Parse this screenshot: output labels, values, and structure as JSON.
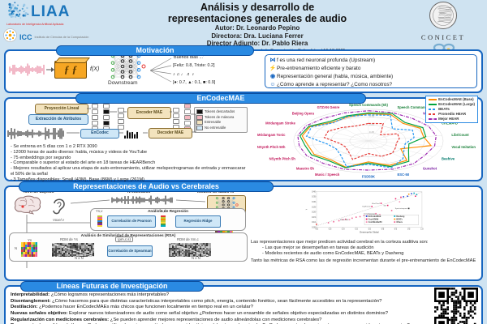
{
  "header": {
    "title_line1": "Análisis y desarrollo de",
    "title_line2": "representaciones generales de audio",
    "author": "Autor: Dr. Leonardo Pepino",
    "director": "Directora: Dra. Luciana Ferrer",
    "codirector": "Director Adjunto: Dr. Pablo Riera",
    "thesis_note": "Tesis para optar por el título de Dr. en Ciencias de la Computación. Defendida el 16-12-2025",
    "liaa_name": "LIAA",
    "liaa_tagline": "Laboratorio de Inteligencia Artificial Aplicada",
    "icc_name": "ICC",
    "icc_tagline": "Instituto de Ciencias de la Computación",
    "conicet": "CONICET"
  },
  "motivacion": {
    "title": "Motivación",
    "fx_label": "f(X)",
    "downstream_label": "Downstream",
    "outputs": [
      "'Buenos días ...'",
      "[Feliz: 0.8, Triste: 0.2]",
      "♪ ♫ ♩ ♬ ♪",
      "[●: 0.7, ▲: 0.1, ■: 0.9]"
    ],
    "bullets": [
      {
        "icon": "⋈",
        "icon_name": "upstream-network-icon",
        "text": "f es una red neuronal profunda (Upstream)"
      },
      {
        "icon": "⚡",
        "icon_name": "efficiency-icon",
        "text": "Pre-entrenamiento eficiente y barato"
      },
      {
        "icon": "◉",
        "icon_name": "general-representation-icon",
        "text": "Representación general (habla, música, ambiente)"
      },
      {
        "icon": "☺",
        "icon_name": "brain-learning-icon",
        "text": "¿Cómo aprende a representar? ¿Como nosotros?"
      }
    ]
  },
  "encodecmae": {
    "title": "EnCodecMAE",
    "diagram": {
      "proj": "Proyección Lineal",
      "extract": "Extracción de Atributos",
      "encoder": "Encoder MAE",
      "encodec": "EnCodec",
      "decoder": "Decoder MAE",
      "legend": [
        {
          "color": "#111111",
          "label": "Tokens descartados"
        },
        {
          "color": "#f4b8c0",
          "label": "Tokens de máscara"
        },
        {
          "color": "#f3e3bd",
          "label": "Entrenable"
        },
        {
          "color": "#cfe7f7",
          "label": "No entrenable"
        }
      ]
    },
    "bullets": [
      "Se entrena en 5 días con 1 o 2 RTX 3090",
      "12000 horas de audio diverso: habla, música y videos de YouTube",
      "75 embeddings por segundo",
      "Comparable o superior al estado del arte en 18 tareas de HEARBench",
      "Mejores resultados al aplicar una etapa de auto-entrenamiento, utilizar melspectrogramas de entrada y enmascarar el 50% de la señal",
      "3 Tamaños disponibles: Small (43M), Base (86M) y Large (261M)"
    ]
  },
  "cerebrales": {
    "title": "Representaciones de Audio vs Cerebrales",
    "fmri_label": "fMRI de Sujetos",
    "stimuli_label": "N estímulos",
    "model_label": "Modelo de audio m",
    "voxel_label": "Voxel v",
    "regression_title": "Análisis de Regresión",
    "y_col_label": "Ys,v",
    "yhat_col_label": "Ŷs,v",
    "pearson": "Correlación de Pearson",
    "ridge": "Regresión Ridge",
    "x_matrix_label": "Xm,c",
    "rsa_title": "Análisis de Similaridad de Representaciones (RSA)",
    "ys_label": "Ys",
    "n_label": "N",
    "rdm_y": "RDM de Ys",
    "rdm_x": "RDM de Xm,c",
    "rho_chip": "(ρm,c,s)",
    "spearman": "Correlación de Spearman",
    "nxn": "N x N",
    "findings_intro": "Las representaciones que mejor predicen actividad cerebral en la corteza auditiva son:",
    "findings": [
      "Las que mejor se desempeñan en tareas de audición",
      "Modelos recientes de audio como EnCodecMAE, BEATs y Dasheng"
    ],
    "findings_note": "Tanto las métricas de RSA como las de regresión incrementan durante el pre-entrenamiento de EnCodecMAE"
  },
  "futuras": {
    "title": "Líneas Futuras de Investigación",
    "items": [
      {
        "label": "Interpretabilidad:",
        "text": " ¿Cómo logramos representaciones más interpretables?"
      },
      {
        "label": "Disentanglement:",
        "text": " ¿Cómo hacemos para que distintas características interpretables como pitch, energía, contenido fonético, sean fácilmente accesibles en la representación?"
      },
      {
        "label": "Destilación:",
        "text": " ¿Podemos hacer EnCodecMAEs más chicos que funcionen localmente en tiempo real en un celular?"
      },
      {
        "label": "Nuevas señales objetivo:",
        "text": " Explorar nuevos tokenizadores de audio como señal objetivo ¿Podemos hacer un ensamble de señales objetivo especializadas en distintos dominios?"
      },
      {
        "label": "Regularización con mediciones cerebrales:",
        "text": " ¿Se pueden aprender mejores representaciones de audio alineándolas con mediciones cerebrales?"
      },
      {
        "label": "Representaciones bioacústicas:",
        "text": " ¿Podemos utilizar los mismos métodos con sonidos típicos del entorno de animales? ¿Podemos entender mejor cómo procesan sonidos otras especies?"
      }
    ]
  },
  "chart_data": [
    {
      "type": "radar",
      "title": "",
      "rlim": [
        0,
        1
      ],
      "rticks": [
        0.25,
        0.5,
        0.75
      ],
      "legend_position": "top-right",
      "categories": [
        "Speech Commands (5h)",
        "Speech Commands (Full)",
        "VoxLingua 107",
        "CREMA-D",
        "LibriCount",
        "Vocal Imitation",
        "Beehive",
        "Gunshot",
        "ESC-50",
        "FSD50K",
        "Music / Speech",
        "Maestro 5h",
        "NSynth Pitch 5h",
        "NSynth Pitch 50h",
        "Mridangam Tonic",
        "Mridangam Stroke",
        "Beijing Opera",
        "GTZAN Genre"
      ],
      "label_colors": [
        "#188038",
        "#188038",
        "#7b1fa2",
        "#188038",
        "#188038",
        "#188038",
        "#00796b",
        "#7b1fa2",
        "#1565c0",
        "#1565c0",
        "#c2185b",
        "#c2185b",
        "#c2185b",
        "#c2185b",
        "#c2185b",
        "#c2185b",
        "#c2185b",
        "#c2185b"
      ],
      "series": [
        {
          "name": "EnCodecMAE (Base)",
          "color": "#ff8c00",
          "dash": "solid",
          "values": [
            0.86,
            0.88,
            0.72,
            0.8,
            0.75,
            0.85,
            0.5,
            0.8,
            0.82,
            0.66,
            0.88,
            0.78,
            0.84,
            0.82,
            0.9,
            0.9,
            0.76,
            0.8
          ]
        },
        {
          "name": "EnCodecMAE (Large)",
          "color": "#00a33e",
          "dash": "solid",
          "values": [
            0.88,
            0.92,
            0.76,
            0.84,
            0.78,
            0.55,
            0.62,
            0.84,
            0.86,
            0.7,
            0.9,
            0.82,
            0.88,
            0.86,
            0.93,
            0.92,
            0.8,
            0.84
          ]
        },
        {
          "name": "BEATs",
          "color": "#2196f3",
          "dash": "dashed",
          "values": [
            0.82,
            0.86,
            0.5,
            0.68,
            0.62,
            0.5,
            0.55,
            0.72,
            0.9,
            0.74,
            0.86,
            0.58,
            0.5,
            0.56,
            0.84,
            0.88,
            0.74,
            0.82
          ]
        },
        {
          "name": "Promedio HEAR",
          "color": "#e53935",
          "dash": "dashed",
          "values": [
            0.55,
            0.58,
            0.25,
            0.45,
            0.42,
            0.38,
            0.42,
            0.5,
            0.52,
            0.4,
            0.62,
            0.42,
            0.36,
            0.4,
            0.6,
            0.62,
            0.55,
            0.5
          ]
        },
        {
          "name": "Mejor HEAR",
          "color": "#9c27b0",
          "dash": "dashdot",
          "values": [
            0.95,
            0.95,
            0.92,
            0.93,
            0.92,
            0.9,
            0.88,
            0.94,
            0.95,
            0.92,
            0.95,
            0.93,
            0.95,
            0.94,
            0.96,
            0.96,
            0.93,
            0.94
          ]
        }
      ]
    },
    {
      "type": "scatter",
      "title": "",
      "xlabel": "Desempeño Global",
      "ylabel": "r̄",
      "xlim": [
        -3.0,
        1.0
      ],
      "ylim": [
        0.05,
        0.4
      ],
      "xticks": [
        -3.0,
        -2.5,
        -2.0,
        -1.5,
        -1.0,
        -0.5,
        0.0,
        0.5,
        1.0
      ],
      "yticks": [
        0.05,
        0.1,
        0.15,
        0.2,
        0.25,
        0.3,
        0.35,
        0.4
      ],
      "trend": {
        "x1": -3.0,
        "y1": 0.065,
        "x2": 1.0,
        "y2": 0.395
      },
      "legend": [
        {
          "name": "EnCodecMAE",
          "color": "#1f3fd4"
        },
        {
          "name": "CochCNN9",
          "color": "#e91e63"
        },
        {
          "name": "CochResNet50",
          "color": "#f48fb1"
        },
        {
          "name": "Dasheng",
          "color": "#00acc1"
        },
        {
          "name": "BEATs",
          "color": "#ff9800"
        },
        {
          "name": "Others",
          "color": "#f06292"
        }
      ],
      "points": [
        {
          "x": -3.0,
          "y": 0.08,
          "c": "#e53935"
        },
        {
          "x": -2.55,
          "y": 0.095,
          "c": "#f06292"
        },
        {
          "x": -2.35,
          "y": 0.105,
          "c": "#f06292"
        },
        {
          "x": -2.15,
          "y": 0.115,
          "c": "#f06292"
        },
        {
          "x": -2.0,
          "y": 0.125,
          "c": "#f06292"
        },
        {
          "x": -1.9,
          "y": 0.13,
          "c": "#f06292"
        },
        {
          "x": -1.75,
          "y": 0.125,
          "c": "#f48fb1",
          "label": "MetricGAN"
        },
        {
          "x": -1.65,
          "y": 0.14,
          "c": "#f06292"
        },
        {
          "x": -1.5,
          "y": 0.15,
          "c": "#f06292"
        },
        {
          "x": -1.35,
          "y": 0.155,
          "c": "#f06292"
        },
        {
          "x": -1.2,
          "y": 0.165,
          "c": "#f06292"
        },
        {
          "x": -1.05,
          "y": 0.17,
          "c": "#f06292"
        },
        {
          "x": -0.9,
          "y": 0.255,
          "c": "#e91e63",
          "label": "SepFormer"
        },
        {
          "x": -0.75,
          "y": 0.185,
          "c": "#f06292",
          "label": "DeepSpeech2"
        },
        {
          "x": -0.6,
          "y": 0.175,
          "c": "#f06292",
          "label": "ZeroSpeech"
        },
        {
          "x": -0.55,
          "y": 0.285,
          "c": "#e91e63",
          "label": "Wav2Vec2"
        },
        {
          "x": -0.3,
          "y": 0.265,
          "c": "#e91e63",
          "label": "S2T"
        },
        {
          "x": -0.15,
          "y": 0.215,
          "c": "#f06292"
        },
        {
          "x": 0.0,
          "y": 0.33,
          "c": "#e91e63"
        },
        {
          "x": 0.15,
          "y": 0.3,
          "c": "#f48fb1"
        },
        {
          "x": 0.2,
          "y": 0.345,
          "c": "#e91e63"
        },
        {
          "x": 0.3,
          "y": 0.35,
          "c": "#1f3fd4"
        },
        {
          "x": 0.45,
          "y": 0.355,
          "c": "#1f3fd4"
        },
        {
          "x": 0.5,
          "y": 0.235,
          "c": "#333333",
          "label": "Spectrotemporal"
        },
        {
          "x": 0.5,
          "y": 0.375,
          "c": "#ff9800"
        },
        {
          "x": 0.6,
          "y": 0.38,
          "c": "#1f3fd4"
        },
        {
          "x": 0.7,
          "y": 0.385,
          "c": "#00acc1"
        },
        {
          "x": 0.8,
          "y": 0.37,
          "c": "#00acc1"
        },
        {
          "x": 0.75,
          "y": 0.355,
          "c": "#e91e63"
        }
      ]
    }
  ]
}
